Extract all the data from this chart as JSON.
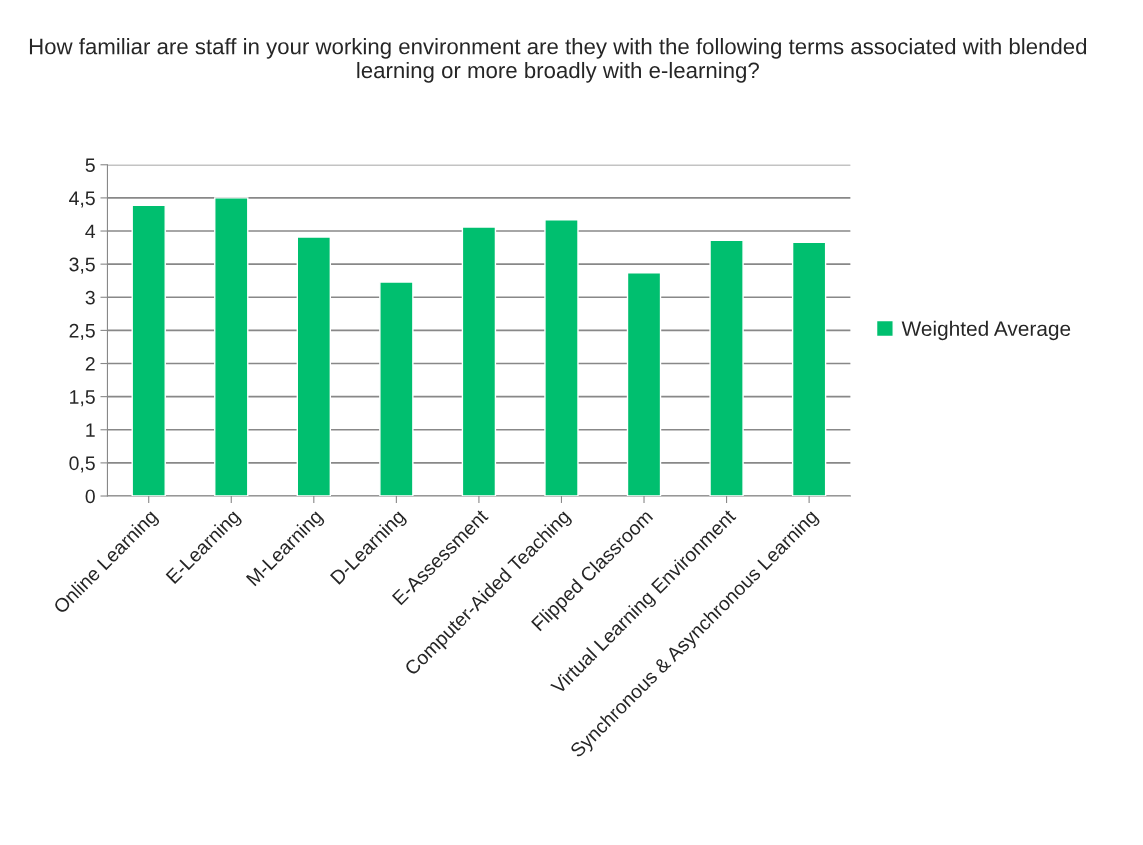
{
  "chart_data": {
    "type": "bar",
    "title": "How familiar are staff in your working environment are they with the following terms associated with blended learning or more broadly with e-learning?",
    "categories": [
      "Online Learning",
      "E-Learning",
      "M-Learning",
      "D-Learning",
      "E-Assessment",
      "Computer-Aided Teaching",
      "Flipped Classroom",
      "Virtual Learning Environment",
      "Synchronous & Asynchronous Learning"
    ],
    "series": [
      {
        "name": "Weighted Average",
        "color": "#00bf6f",
        "values": [
          4.39,
          4.5,
          3.91,
          3.23,
          4.06,
          4.17,
          3.37,
          3.86,
          3.83
        ]
      }
    ],
    "ylim": [
      0,
      5
    ],
    "yticks": [
      0,
      {
        "value": 0.5,
        "label": "0,5"
      },
      1,
      {
        "value": 1.5,
        "label": "1,5"
      },
      2,
      {
        "value": 2.5,
        "label": "2,5"
      },
      3,
      {
        "value": 3.5,
        "label": "3,5"
      },
      4,
      {
        "value": 4.5,
        "label": "4,5"
      },
      5
    ],
    "grid": "y",
    "legend": "right"
  }
}
